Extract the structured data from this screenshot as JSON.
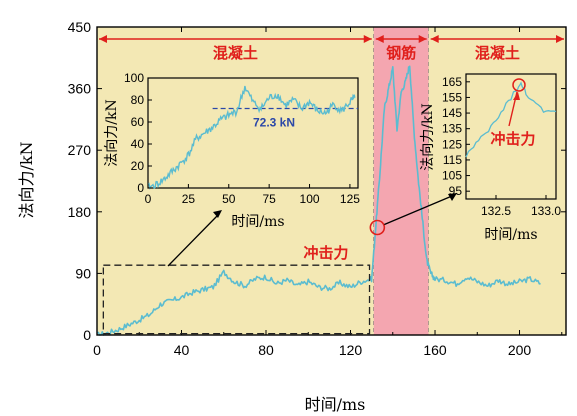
{
  "chart_data": [
    {
      "type": "line",
      "xlabel": "时间/ms",
      "ylabel": "法向力/kN",
      "xlim": [
        0,
        222
      ],
      "ylim": [
        0,
        450
      ],
      "xticks": [
        0,
        40,
        80,
        120,
        160,
        200
      ],
      "yticks": [
        0,
        90,
        180,
        270,
        360,
        450
      ],
      "regions": [
        {
          "label": "混凝土",
          "x_start": 0,
          "x_end": 131,
          "color": "#f3e8b4"
        },
        {
          "label": "钢筋",
          "x_start": 131,
          "x_end": 157,
          "color": "#f4a6b0"
        },
        {
          "label": "混凝土",
          "x_start": 157,
          "x_end": 222,
          "color": "#f3e8b4"
        }
      ],
      "series": [
        {
          "color": "#5bbcd0",
          "x": [
            0,
            5,
            10,
            15,
            20,
            25,
            30,
            35,
            40,
            45,
            50,
            55,
            60,
            65,
            70,
            75,
            80,
            85,
            90,
            95,
            100,
            105,
            110,
            115,
            120,
            125,
            130,
            132,
            134,
            136,
            138,
            140,
            142,
            144,
            146,
            148,
            150,
            152,
            154,
            156,
            158,
            160,
            165,
            170,
            175,
            180,
            185,
            190,
            195,
            200,
            205,
            210
          ],
          "y": [
            0,
            3,
            8,
            15,
            22,
            30,
            45,
            50,
            55,
            62,
            66,
            70,
            92,
            78,
            72,
            82,
            85,
            75,
            80,
            72,
            78,
            70,
            68,
            76,
            70,
            78,
            82,
            160,
            240,
            330,
            360,
            390,
            300,
            355,
            370,
            395,
            300,
            230,
            170,
            110,
            90,
            82,
            80,
            75,
            85,
            78,
            72,
            80,
            74,
            78,
            82,
            75
          ]
        }
      ],
      "annotations": [
        {
          "text": "冲击力",
          "x": 132.7,
          "y": 160
        }
      ],
      "legend": "none",
      "grid": false
    },
    {
      "type": "line",
      "inset": "top-left",
      "xlabel": "时间/ms",
      "ylabel": "法向力/kN",
      "xlim": [
        0,
        130
      ],
      "ylim": [
        0,
        100
      ],
      "xticks": [
        0,
        25,
        50,
        75,
        100,
        125
      ],
      "yticks": [
        0,
        20,
        40,
        60,
        80,
        100
      ],
      "reference_line": {
        "y": 72.3,
        "label": "72.3 kN",
        "style": "dashed"
      },
      "series": [
        {
          "color": "#5bbcd0",
          "x": [
            0,
            5,
            10,
            15,
            20,
            25,
            30,
            35,
            40,
            45,
            50,
            55,
            60,
            65,
            70,
            75,
            80,
            85,
            90,
            95,
            100,
            105,
            110,
            115,
            120,
            125,
            128
          ],
          "y": [
            0,
            3,
            8,
            15,
            22,
            30,
            45,
            50,
            55,
            62,
            66,
            70,
            92,
            78,
            72,
            82,
            85,
            75,
            80,
            72,
            78,
            70,
            68,
            76,
            70,
            78,
            82
          ]
        }
      ],
      "grid": false
    },
    {
      "type": "line",
      "inset": "top-right",
      "xlabel": "时间/ms",
      "ylabel": "法向力/kN",
      "xlim": [
        132.2,
        133.1
      ],
      "ylim": [
        90,
        170
      ],
      "xticks": [
        132.5,
        133.0
      ],
      "xtick_labels": [
        "132.5",
        "133.0"
      ],
      "yticks": [
        95,
        105,
        115,
        125,
        135,
        145,
        155,
        165
      ],
      "series": [
        {
          "color": "#5bbcd0",
          "x": [
            132.2,
            132.3,
            132.4,
            132.5,
            132.6,
            132.7,
            132.75,
            132.8,
            132.9,
            133.0,
            133.1
          ],
          "y": [
            118,
            125,
            132,
            140,
            150,
            160,
            163,
            158,
            150,
            145,
            146
          ]
        }
      ],
      "annotations": [
        {
          "text": "冲击力",
          "x": 132.73,
          "y": 163
        }
      ],
      "grid": false
    }
  ]
}
